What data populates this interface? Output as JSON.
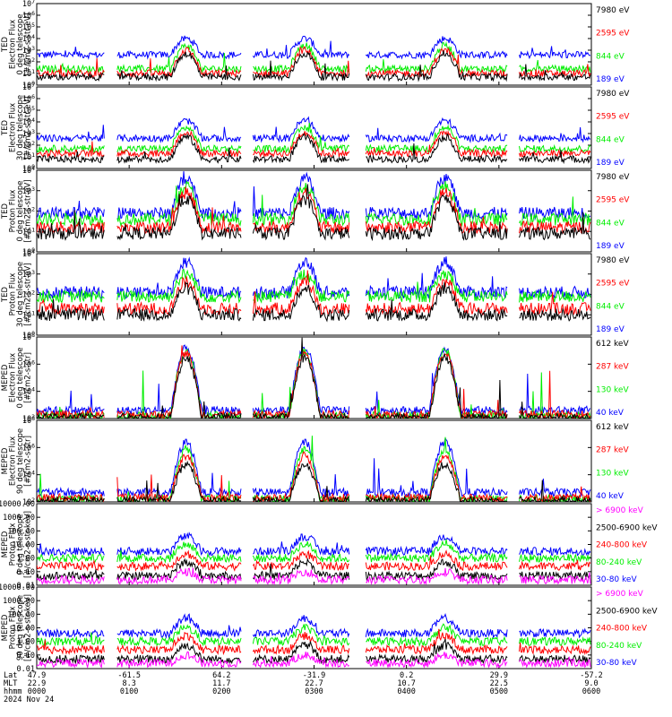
{
  "colors": {
    "black": "#000000",
    "red": "#ff0000",
    "green": "#00ee00",
    "blue": "#0000ff",
    "magenta": "#ff00ff"
  },
  "chart_data": [
    {
      "type": "line",
      "ylabel": [
        "TED",
        "Electron Flux",
        "0 deg telescope",
        "[#/cm2-s-str-eV]"
      ],
      "yscale": "log",
      "ylim_exp": [
        0,
        7
      ],
      "ytick_labels": [
        "10^0",
        "10^1",
        "10^2",
        "10^3",
        "10^4",
        "10^5",
        "10^6",
        "10^7"
      ],
      "series": [
        {
          "name": "7980 eV",
          "color": "black"
        },
        {
          "name": "2595 eV",
          "color": "red"
        },
        {
          "name": "844 eV",
          "color": "green"
        },
        {
          "name": "189 eV",
          "color": "blue"
        }
      ],
      "baseline_exp": [
        0.7,
        1.0,
        1.4,
        2.6
      ],
      "peak_exp": [
        2.7,
        3.0,
        3.4,
        4.0
      ]
    },
    {
      "type": "line",
      "ylabel": [
        "TED",
        "Electron Flux",
        "30 deg telescope",
        "[#/cm2-s-str-eV]"
      ],
      "yscale": "log",
      "ylim_exp": [
        0,
        7
      ],
      "ytick_labels": [
        "10^0",
        "10^1",
        "10^2",
        "10^3",
        "10^4",
        "10^5",
        "10^6",
        "10^7"
      ],
      "series": [
        {
          "name": "7980 eV",
          "color": "black"
        },
        {
          "name": "2595 eV",
          "color": "red"
        },
        {
          "name": "844 eV",
          "color": "green"
        },
        {
          "name": "189 eV",
          "color": "blue"
        }
      ],
      "baseline_exp": [
        0.8,
        1.3,
        1.7,
        2.6
      ],
      "peak_exp": [
        2.7,
        3.1,
        3.5,
        4.1
      ]
    },
    {
      "type": "line",
      "ylabel": [
        "TED",
        "Proton Flux",
        "0 deg telescope",
        "[#/cm2-s-str-eV]"
      ],
      "yscale": "log",
      "ylim_exp": [
        0,
        4
      ],
      "ytick_labels": [
        "10^0",
        "10^1",
        "10^2",
        "10^3",
        "10^4"
      ],
      "series": [
        {
          "name": "7980 eV",
          "color": "black"
        },
        {
          "name": "2595 eV",
          "color": "red"
        },
        {
          "name": "844 eV",
          "color": "green"
        },
        {
          "name": "189 eV",
          "color": "blue"
        }
      ],
      "baseline_exp": [
        0.9,
        1.2,
        1.6,
        1.9
      ],
      "peak_exp": [
        2.6,
        2.9,
        3.2,
        3.6
      ]
    },
    {
      "type": "line",
      "ylabel": [
        "TED",
        "Proton Flux",
        "30 deg telescope",
        "[#/cm2-s-str-eV]"
      ],
      "yscale": "log",
      "ylim_exp": [
        0,
        4
      ],
      "ytick_labels": [
        "10^0",
        "10^1",
        "10^2",
        "10^3",
        "10^4"
      ],
      "series": [
        {
          "name": "7980 eV",
          "color": "black"
        },
        {
          "name": "2595 eV",
          "color": "red"
        },
        {
          "name": "844 eV",
          "color": "green"
        },
        {
          "name": "189 eV",
          "color": "blue"
        }
      ],
      "baseline_exp": [
        1.0,
        1.3,
        1.9,
        2.1
      ],
      "peak_exp": [
        2.3,
        2.6,
        3.0,
        3.6
      ]
    },
    {
      "type": "line",
      "ylabel": [
        "MEPED",
        "Electron Flux",
        "0 deg telescope",
        "[#/cm2-s-str]"
      ],
      "yscale": "log",
      "ylim_exp": [
        2,
        8
      ],
      "ytick_labels": [
        "10^2",
        "10^4",
        "10^6",
        "10^8"
      ],
      "series": [
        {
          "name": "612 keV",
          "color": "black"
        },
        {
          "name": "287 keV",
          "color": "red"
        },
        {
          "name": "130 keV",
          "color": "green"
        },
        {
          "name": "40 keV",
          "color": "blue"
        }
      ],
      "baseline_exp": [
        2.1,
        2.3,
        2.2,
        2.6
      ],
      "peak_exp": [
        6.5,
        6.8,
        7.0,
        7.2
      ]
    },
    {
      "type": "line",
      "ylabel": [
        "MEPED",
        "Electron Flux",
        "90 deg telescope",
        "[#/cm2-s-str]"
      ],
      "yscale": "log",
      "ylim_exp": [
        2,
        8
      ],
      "ytick_labels": [
        "10^2",
        "10^4",
        "10^6",
        "10^8"
      ],
      "series": [
        {
          "name": "612 keV",
          "color": "black"
        },
        {
          "name": "287 keV",
          "color": "red"
        },
        {
          "name": "130 keV",
          "color": "green"
        },
        {
          "name": "40 keV",
          "color": "blue"
        }
      ],
      "baseline_exp": [
        2.1,
        2.3,
        2.2,
        2.7
      ],
      "peak_exp": [
        4.8,
        5.4,
        5.8,
        6.4
      ]
    },
    {
      "type": "line",
      "ylabel": [
        "MEPED",
        "Proton Flux",
        "0 deg telescope",
        "[#/cm2-s-str-keV]"
      ],
      "yscale": "log",
      "ylim_exp": [
        -2,
        4
      ],
      "ytick_labels": [
        "0.01",
        "0.10",
        "1.00",
        "10.00",
        "100.00",
        "1000.00",
        "10000.00"
      ],
      "series": [
        {
          "name": "> 6900 keV",
          "color": "magenta"
        },
        {
          "name": "2500-6900 keV",
          "color": "black"
        },
        {
          "name": "240-800 keV",
          "color": "red"
        },
        {
          "name": "80-240 keV",
          "color": "green"
        },
        {
          "name": "30-80 keV",
          "color": "blue"
        }
      ],
      "baseline_exp": [
        -1.6,
        -1.3,
        -0.6,
        0.0,
        0.5
      ],
      "peak_exp": [
        -1.0,
        -0.3,
        0.3,
        1.0,
        1.6
      ]
    },
    {
      "type": "line",
      "ylabel": [
        "MEPED",
        "Proton Flux",
        "90 deg telescope",
        "[#/cm2-s-str-keV]"
      ],
      "yscale": "log",
      "ylim_exp": [
        -2,
        4
      ],
      "ytick_labels": [
        "0.01",
        "0.10",
        "1.00",
        "10.00",
        "100.00",
        "1000.00",
        "10000.00"
      ],
      "series": [
        {
          "name": "> 6900 keV",
          "color": "magenta"
        },
        {
          "name": "2500-6900 keV",
          "color": "black"
        },
        {
          "name": "240-800 keV",
          "color": "red"
        },
        {
          "name": "80-240 keV",
          "color": "green"
        },
        {
          "name": "30-80 keV",
          "color": "blue"
        }
      ],
      "baseline_exp": [
        -1.6,
        -1.3,
        -0.6,
        0.0,
        0.6
      ],
      "peak_exp": [
        -1.0,
        -0.3,
        0.4,
        1.0,
        1.7
      ]
    }
  ],
  "x_axis": {
    "row_labels": [
      "Lat",
      "MLT",
      "hhmm"
    ],
    "ticks": [
      {
        "lat": "47.9",
        "mlt": "22.9",
        "hhmm": "0000"
      },
      {
        "lat": "-61.5",
        "mlt": "8.3",
        "hhmm": "0100"
      },
      {
        "lat": "64.2",
        "mlt": "11.7",
        "hhmm": "0200"
      },
      {
        "lat": "-31.9",
        "mlt": "22.7",
        "hhmm": "0300"
      },
      {
        "lat": "0.2",
        "mlt": "10.7",
        "hhmm": "0400"
      },
      {
        "lat": "29.9",
        "mlt": "22.5",
        "hhmm": "0500"
      },
      {
        "lat": "-57.2",
        "mlt": "9.0",
        "hhmm": "0600"
      }
    ],
    "date": "2024 Nov 24",
    "range_minutes": [
      0,
      360
    ],
    "passes_minutes": [
      97,
      174,
      265
    ],
    "gaps_minutes": [
      [
        44,
        52
      ],
      [
        133,
        140
      ],
      [
        203,
        213
      ],
      [
        306,
        313
      ]
    ]
  }
}
